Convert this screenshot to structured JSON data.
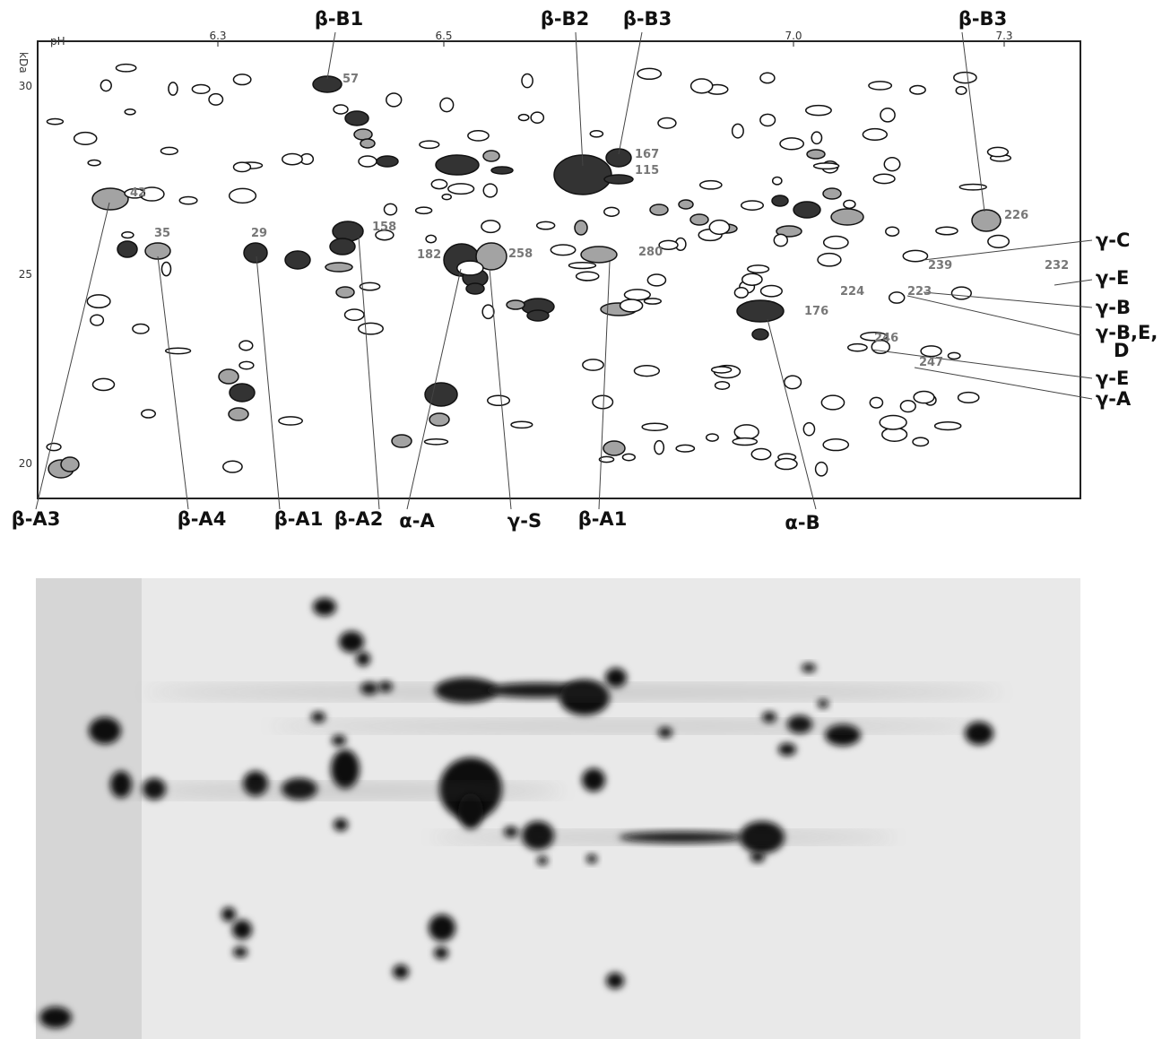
{
  "axes": {
    "x_label": "pH",
    "y_label": "kDa",
    "x_ticks": [
      "6.3",
      "6.5",
      "7.0",
      "7.3"
    ],
    "y_ticks": [
      "30",
      "25",
      "20"
    ]
  },
  "proteins": [
    "β-B1",
    "β-B2",
    "β-B3",
    "β-B3",
    "γ-C",
    "γ-E",
    "γ-B",
    [
      "γ-B,E,",
      "D"
    ],
    "γ-E",
    "γ-A",
    "β-A3",
    "β-A4",
    "β-A1",
    "β-A2",
    "α-A",
    "γ-S",
    "β-A1",
    "α-B"
  ],
  "spots": [
    "57",
    "167",
    "115",
    "42",
    "35",
    "29",
    "158",
    "182",
    "258",
    "280",
    "176",
    "226",
    "239",
    "232",
    "224",
    "223",
    "246",
    "247"
  ]
}
